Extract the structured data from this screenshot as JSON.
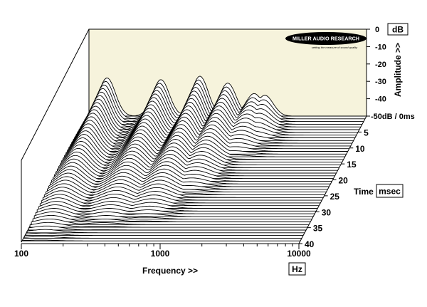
{
  "chart_data": {
    "type": "waterfall",
    "xlabel": "Frequency >>",
    "x_unit": "Hz",
    "x_scale": "log",
    "xlim": [
      100,
      10000
    ],
    "x_ticks": [
      "100",
      "1000",
      "10000"
    ],
    "ylabel": "Amplitude >>",
    "y_unit": "dB",
    "ylim": [
      -50,
      0
    ],
    "y_ticks": [
      "0",
      "-10",
      "-20",
      "-30",
      "-40",
      "-50dB / 0ms"
    ],
    "zlabel": "Time",
    "z_unit": "msec",
    "zlim": [
      0,
      40
    ],
    "z_ticks": [
      "5",
      "10",
      "15",
      "20",
      "25",
      "30",
      "35",
      "40"
    ],
    "back_wall_color": "#f6f3dc",
    "peaks": [
      {
        "freq_hz": 135,
        "level_db": -28,
        "decay_ms": 40
      },
      {
        "freq_hz": 330,
        "level_db": -29,
        "decay_ms": 36
      },
      {
        "freq_hz": 630,
        "level_db": -27,
        "decay_ms": 34
      },
      {
        "freq_hz": 1000,
        "level_db": -31,
        "decay_ms": 26
      },
      {
        "freq_hz": 1550,
        "level_db": -37,
        "decay_ms": 14
      },
      {
        "freq_hz": 1850,
        "level_db": -38,
        "decay_ms": 10
      }
    ]
  },
  "logo": {
    "name": "MILLER AUDIO RESEARCH",
    "tagline": "setting the measure of sound quality"
  }
}
